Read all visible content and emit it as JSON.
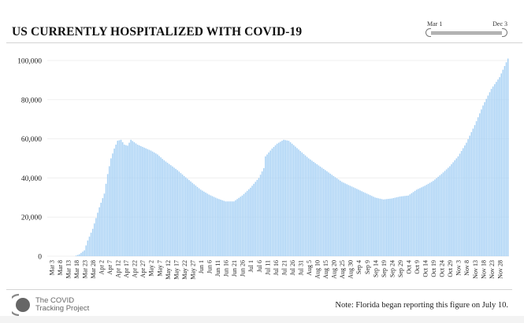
{
  "title": "US CURRENTLY HOSPITALIZED WITH COVID-19",
  "range_slider": {
    "start_label": "Mar 1",
    "end_label": "Dec 3"
  },
  "footer": {
    "logo_line1": "The COVID",
    "logo_line2": "Tracking Project",
    "note": "Note: Florida began reporting this figure on July 10."
  },
  "colors": {
    "bar": "#a9d2f5",
    "bar_edge": "#8cc2ef",
    "grid": "#efefef",
    "text": "#222222"
  },
  "chart_data": {
    "type": "bar",
    "title": "US CURRENTLY HOSPITALIZED WITH COVID-19",
    "xlabel": "",
    "ylabel": "",
    "ylim": [
      0,
      100000
    ],
    "grid": true,
    "yticks": [
      0,
      20000,
      40000,
      60000,
      80000,
      100000
    ],
    "ytick_labels": [
      "0",
      "20,000",
      "40,000",
      "60,000",
      "80,000",
      "100,000"
    ],
    "x_range": [
      "Mar 1",
      "Dec 3"
    ],
    "xtick_labels": [
      "Mar 3",
      "Mar 8",
      "Mar 13",
      "Mar 18",
      "Mar 23",
      "Mar 28",
      "Apr 2",
      "Apr 7",
      "Apr 12",
      "Apr 17",
      "Apr 22",
      "Apr 27",
      "May 2",
      "May 7",
      "May 12",
      "May 17",
      "May 22",
      "May 27",
      "Jun 1",
      "Jun 6",
      "Jun 11",
      "Jun 16",
      "Jun 21",
      "Jun 26",
      "Jul 1",
      "Jul 6",
      "Jul 11",
      "Jul 16",
      "Jul 21",
      "Jul 26",
      "Jul 31",
      "Aug 5",
      "Aug 10",
      "Aug 15",
      "Aug 20",
      "Aug 25",
      "Aug 30",
      "Sep 4",
      "Sep 9",
      "Sep 14",
      "Sep 19",
      "Sep 24",
      "Sep 29",
      "Oct 4",
      "Oct 9",
      "Oct 14",
      "Oct 19",
      "Oct 24",
      "Oct 29",
      "Nov 3",
      "Nov 8",
      "Nov 13",
      "Nov 18",
      "Nov 23",
      "Nov 28"
    ],
    "series_note": "Daily values (Mar 1 to Dec 3) linearly interpolated from these anchors; day index 0 = Mar 1",
    "anchors": [
      [
        0,
        0
      ],
      [
        16,
        0
      ],
      [
        19,
        1000
      ],
      [
        22,
        3000
      ],
      [
        24,
        8000
      ],
      [
        27,
        14000
      ],
      [
        31,
        25000
      ],
      [
        34,
        32000
      ],
      [
        36,
        42000
      ],
      [
        38,
        50000
      ],
      [
        40,
        55000
      ],
      [
        42,
        59000
      ],
      [
        44,
        59500
      ],
      [
        46,
        57000
      ],
      [
        48,
        56500
      ],
      [
        50,
        59500
      ],
      [
        54,
        57000
      ],
      [
        58,
        55500
      ],
      [
        62,
        54000
      ],
      [
        66,
        52000
      ],
      [
        70,
        49000
      ],
      [
        74,
        46500
      ],
      [
        78,
        44000
      ],
      [
        82,
        41000
      ],
      [
        87,
        37500
      ],
      [
        92,
        34000
      ],
      [
        97,
        31500
      ],
      [
        102,
        29500
      ],
      [
        107,
        28000
      ],
      [
        112,
        28000
      ],
      [
        117,
        31000
      ],
      [
        122,
        35000
      ],
      [
        127,
        40000
      ],
      [
        130,
        45000
      ],
      [
        131,
        51000
      ],
      [
        135,
        55000
      ],
      [
        138,
        57500
      ],
      [
        142,
        59500
      ],
      [
        145,
        59000
      ],
      [
        149,
        56000
      ],
      [
        153,
        53000
      ],
      [
        157,
        50000
      ],
      [
        162,
        47000
      ],
      [
        167,
        44000
      ],
      [
        172,
        41000
      ],
      [
        177,
        38000
      ],
      [
        182,
        36000
      ],
      [
        187,
        34000
      ],
      [
        192,
        32000
      ],
      [
        197,
        30000
      ],
      [
        202,
        29000
      ],
      [
        207,
        29500
      ],
      [
        212,
        30500
      ],
      [
        217,
        31000
      ],
      [
        222,
        34000
      ],
      [
        227,
        36000
      ],
      [
        232,
        38500
      ],
      [
        237,
        42000
      ],
      [
        242,
        46000
      ],
      [
        247,
        51000
      ],
      [
        252,
        58000
      ],
      [
        257,
        67000
      ],
      [
        262,
        77000
      ],
      [
        267,
        85500
      ],
      [
        272,
        91500
      ],
      [
        277,
        101000
      ]
    ]
  }
}
